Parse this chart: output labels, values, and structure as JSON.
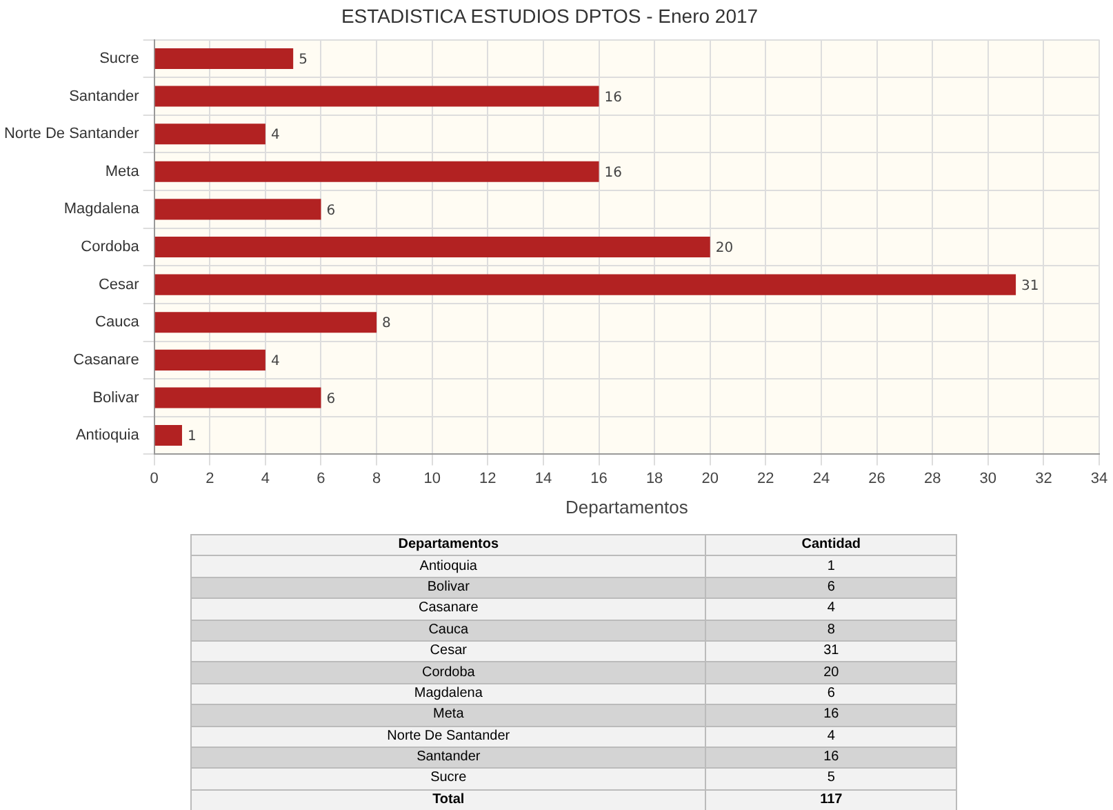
{
  "chart_data": {
    "type": "bar",
    "orientation": "horizontal",
    "title": "ESTADISTICA ESTUDIOS DPTOS - Enero 2017",
    "xlabel": "Departamentos",
    "categories": [
      "Sucre",
      "Santander",
      "Norte De Santander",
      "Meta",
      "Magdalena",
      "Cordoba",
      "Cesar",
      "Cauca",
      "Casanare",
      "Bolivar",
      "Antioquia"
    ],
    "values": [
      5,
      16,
      4,
      16,
      6,
      20,
      31,
      8,
      4,
      6,
      1
    ],
    "color": "#b22222",
    "xlim": [
      0,
      34
    ],
    "xticks": [
      0,
      2,
      4,
      6,
      8,
      10,
      12,
      14,
      16,
      18,
      20,
      22,
      24,
      26,
      28,
      30,
      32,
      34
    ],
    "grid": true,
    "legend": false,
    "data_labels": true,
    "annotations": [
      "Departamentos",
      "Cantidad",
      "1",
      "6",
      "4",
      "8",
      "31",
      "20",
      "6",
      "16",
      "4",
      "16",
      "5",
      "Total",
      "117"
    ]
  }
}
